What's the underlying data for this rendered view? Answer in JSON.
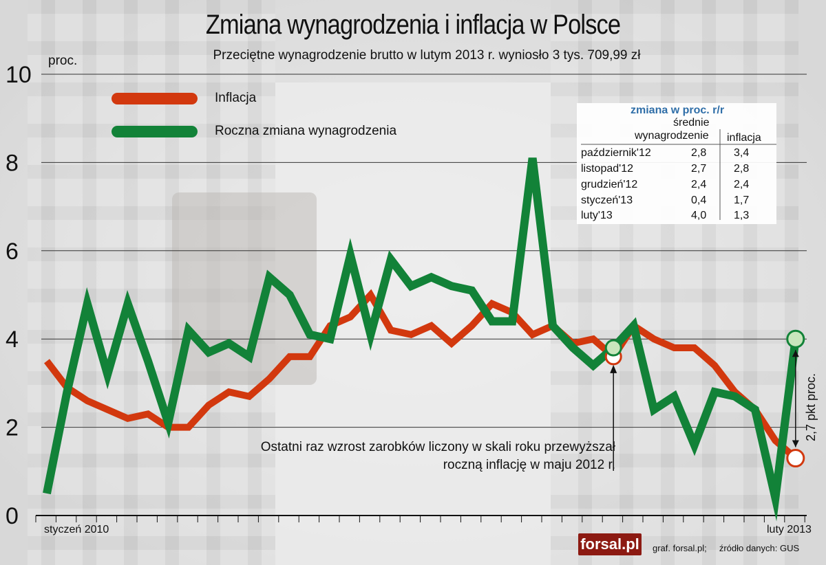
{
  "title": "Zmiana wynagrodzenia i inflacja w Polsce",
  "subtitle": "Przeciętne wynagrodzenie brutto w lutym 2013 r. wyniosło 3 tys. 709,99 zł",
  "unit_label": "proc.",
  "colors": {
    "inflation": "#d2380e",
    "wages": "#128238",
    "wages_marker": "#c9e6bd",
    "inflation_marker": "#ffffff"
  },
  "chart_data": {
    "type": "line",
    "title": "Zmiana wynagrodzenia i inflacja w Polsce",
    "subtitle": "Przeciętne wynagrodzenie brutto w lutym 2013 r. wyniosło 3 tys. 709,99 zł",
    "ylabel": "proc.",
    "ylim": [
      0,
      10
    ],
    "yticks": [
      "0",
      "2",
      "4",
      "6",
      "8",
      "10"
    ],
    "grid": true,
    "legend_placement": "top-left",
    "x_start_label": "styczeń 2010",
    "x_end_label": "luty 2013",
    "x": [
      "2010-01",
      "2010-02",
      "2010-03",
      "2010-04",
      "2010-05",
      "2010-06",
      "2010-07",
      "2010-08",
      "2010-09",
      "2010-10",
      "2010-11",
      "2010-12",
      "2011-01",
      "2011-02",
      "2011-03",
      "2011-04",
      "2011-05",
      "2011-06",
      "2011-07",
      "2011-08",
      "2011-09",
      "2011-10",
      "2011-11",
      "2011-12",
      "2012-01",
      "2012-02",
      "2012-03",
      "2012-04",
      "2012-05",
      "2012-06",
      "2012-07",
      "2012-08",
      "2012-09",
      "2012-10",
      "2012-11",
      "2012-12",
      "2013-01",
      "2013-02"
    ],
    "series": [
      {
        "name": "Inflacja",
        "values": [
          3.5,
          2.9,
          2.6,
          2.4,
          2.2,
          2.3,
          2.0,
          2.0,
          2.5,
          2.8,
          2.7,
          3.1,
          3.6,
          3.6,
          4.3,
          4.5,
          5.0,
          4.2,
          4.1,
          4.3,
          3.9,
          4.3,
          4.8,
          4.6,
          4.1,
          4.3,
          3.9,
          4.0,
          3.6,
          4.3,
          4.0,
          3.8,
          3.8,
          3.4,
          2.8,
          2.4,
          1.7,
          1.3
        ]
      },
      {
        "name": "Roczna zmiana wynagrodzenia",
        "values": [
          0.5,
          2.8,
          4.8,
          3.2,
          4.8,
          3.5,
          2.1,
          4.2,
          3.7,
          3.9,
          3.6,
          5.4,
          5.0,
          4.1,
          4.0,
          5.9,
          4.1,
          5.8,
          5.2,
          5.4,
          5.2,
          5.1,
          4.4,
          4.4,
          8.1,
          4.3,
          3.8,
          3.4,
          3.8,
          4.3,
          2.4,
          2.7,
          1.6,
          2.8,
          2.7,
          2.4,
          0.4,
          4.0
        ]
      }
    ],
    "annotation": [
      "Ostatni raz wzrost zarobków liczony w skali roku przewyższał",
      "roczną inflację w maju 2012 r."
    ],
    "gap_label": "2,7 pkt proc.",
    "table": {
      "caption": "zmiana w proc. r/r",
      "col_wages": [
        "średnie",
        "wynagrodzenie"
      ],
      "col_inflation": "inflacja",
      "rows": [
        {
          "month": "październik'12",
          "wages": "2,8",
          "inflation": "3,4"
        },
        {
          "month": "listopad'12",
          "wages": "2,7",
          "inflation": "2,8"
        },
        {
          "month": "grudzień'12",
          "wages": "2,4",
          "inflation": "2,4"
        },
        {
          "month": "styczeń'13",
          "wages": "0,4",
          "inflation": "1,7"
        },
        {
          "month": "luty'13",
          "wages": "4,0",
          "inflation": "1,3"
        }
      ]
    }
  },
  "footer": {
    "logo": "forsal.pl",
    "credits": "graf. forsal.pl;     źródło danych: GUS"
  }
}
